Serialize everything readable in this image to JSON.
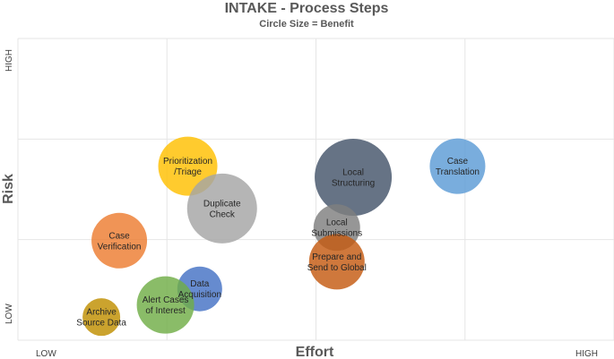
{
  "chart_data": {
    "type": "bubble",
    "title": "INTAKE - Process Steps",
    "subtitle": "Circle Size = Benefit",
    "xlabel": "Effort",
    "ylabel": "Risk",
    "x_low_label": "LOW",
    "x_high_label": "HIGH",
    "y_low_label": "LOW",
    "y_high_label": "HIGH",
    "xlim": [
      0,
      4
    ],
    "ylim": [
      0,
      3
    ],
    "grid": true,
    "legend": "none",
    "points": [
      {
        "label": [
          "Prioritization",
          "/Triage"
        ],
        "x": 1.14,
        "y": 1.73,
        "size": 33,
        "color": "#FFC000"
      },
      {
        "label": [
          "Duplicate",
          "Check"
        ],
        "x": 1.37,
        "y": 1.31,
        "size": 39,
        "color": "#A5A5A5"
      },
      {
        "label": [
          "Case",
          "Verification"
        ],
        "x": 0.68,
        "y": 0.99,
        "size": 31,
        "color": "#ED7D31"
      },
      {
        "label": [
          "Data",
          "Acquisition"
        ],
        "x": 1.22,
        "y": 0.51,
        "size": 25,
        "color": "#4472C4"
      },
      {
        "label": [
          "Alert Cases",
          "of Interest"
        ],
        "x": 0.99,
        "y": 0.35,
        "size": 32,
        "color": "#70AD47"
      },
      {
        "label": [
          "Archive",
          "Source Data"
        ],
        "x": 0.56,
        "y": 0.23,
        "size": 21,
        "color": "#BF8F00"
      },
      {
        "label": [
          "Local",
          "Structuring"
        ],
        "x": 2.25,
        "y": 1.62,
        "size": 43,
        "color": "#44546A"
      },
      {
        "label": [
          "Case",
          "Translation"
        ],
        "x": 2.95,
        "y": 1.73,
        "size": 31,
        "color": "#5B9BD5"
      },
      {
        "label": [
          "Local",
          "Submissions"
        ],
        "x": 2.14,
        "y": 1.12,
        "size": 26,
        "color": "#7F7F7F"
      },
      {
        "label": [
          "Prepare and",
          "Send to Global"
        ],
        "x": 2.14,
        "y": 0.78,
        "size": 31,
        "color": "#C55A11"
      }
    ]
  }
}
